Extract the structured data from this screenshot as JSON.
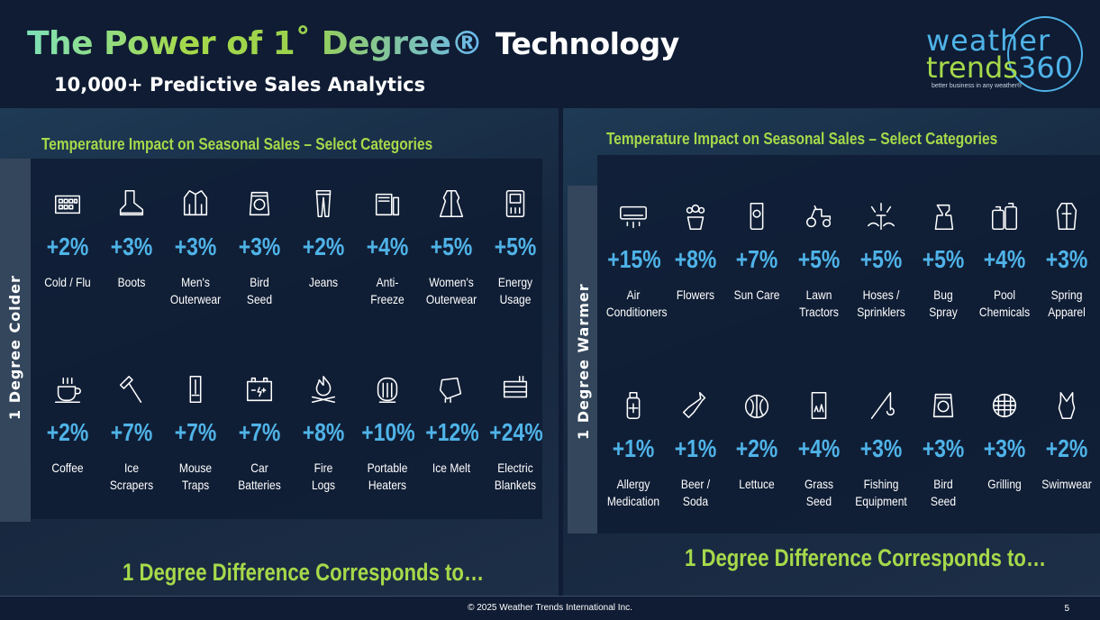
{
  "header": {
    "title_main": "The Power of 1˚ Degree®",
    "title_tech": "Technology",
    "subtitle": "10,000+ Predictive Sales Analytics"
  },
  "logo": {
    "line1": "weather",
    "line2": "trends",
    "line2b": "360",
    "tagline": "better business in any weather®"
  },
  "left_panel": {
    "title": "Temperature Impact on Seasonal Sales – Select Categories",
    "side_label": "1 Degree Colder",
    "bottom_text": "1 Degree Difference Corresponds to…",
    "row1": [
      {
        "icon": "tissue-box-icon",
        "pct": "+2%",
        "label": "Cold / Flu"
      },
      {
        "icon": "boot-icon",
        "pct": "+3%",
        "label": "Boots"
      },
      {
        "icon": "jacket-icon",
        "pct": "+3%",
        "label": "Men's\nOuterwear"
      },
      {
        "icon": "seed-bag-icon",
        "pct": "+3%",
        "label": "Bird\nSeed"
      },
      {
        "icon": "jeans-icon",
        "pct": "+2%",
        "label": "Jeans"
      },
      {
        "icon": "antifreeze-icon",
        "pct": "+4%",
        "label": "Anti-\nFreeze"
      },
      {
        "icon": "coat-icon",
        "pct": "+5%",
        "label": "Women's\nOuterwear"
      },
      {
        "icon": "thermostat-icon",
        "pct": "+5%",
        "label": "Energy\nUsage"
      }
    ],
    "row2": [
      {
        "icon": "coffee-cup-icon",
        "pct": "+2%",
        "label": "Coffee"
      },
      {
        "icon": "ice-scraper-icon",
        "pct": "+7%",
        "label": "Ice\nScrapers"
      },
      {
        "icon": "mouse-trap-icon",
        "pct": "+7%",
        "label": "Mouse\nTraps"
      },
      {
        "icon": "car-battery-icon",
        "pct": "+7%",
        "label": "Car\nBatteries"
      },
      {
        "icon": "fire-logs-icon",
        "pct": "+8%",
        "label": "Fire\nLogs"
      },
      {
        "icon": "heater-icon",
        "pct": "+10%",
        "label": "Portable\nHeaters"
      },
      {
        "icon": "ice-melt-icon",
        "pct": "+12%",
        "label": "Ice Melt"
      },
      {
        "icon": "blanket-icon",
        "pct": "+24%",
        "label": "Electric\nBlankets"
      }
    ]
  },
  "right_panel": {
    "title": "Temperature Impact on Seasonal Sales – Select Categories",
    "side_label": "1 Degree Warmer",
    "bottom_text": "1 Degree Difference Corresponds to…",
    "row1": [
      {
        "icon": "air-conditioner-icon",
        "pct": "+15%",
        "label": "Air\nConditioners"
      },
      {
        "icon": "flower-pot-icon",
        "pct": "+8%",
        "label": "Flowers"
      },
      {
        "icon": "sunscreen-icon",
        "pct": "+7%",
        "label": "Sun Care"
      },
      {
        "icon": "lawn-tractor-icon",
        "pct": "+5%",
        "label": "Lawn\nTractors"
      },
      {
        "icon": "sprinkler-icon",
        "pct": "+5%",
        "label": "Hoses /\nSprinklers"
      },
      {
        "icon": "spray-bottle-icon",
        "pct": "+5%",
        "label": "Bug\nSpray"
      },
      {
        "icon": "chemical-bottles-icon",
        "pct": "+4%",
        "label": "Pool\nChemicals"
      },
      {
        "icon": "raincoat-icon",
        "pct": "+3%",
        "label": "Spring\nApparel"
      }
    ],
    "row2": [
      {
        "icon": "allergy-bottle-icon",
        "pct": "+1%",
        "label": "Allergy\nMedication"
      },
      {
        "icon": "beer-bottle-icon",
        "pct": "+1%",
        "label": "Beer /\nSoda"
      },
      {
        "icon": "lettuce-icon",
        "pct": "+2%",
        "label": "Lettuce"
      },
      {
        "icon": "grass-seed-icon",
        "pct": "+4%",
        "label": "Grass\nSeed"
      },
      {
        "icon": "fishing-rod-icon",
        "pct": "+3%",
        "label": "Fishing\nEquipment"
      },
      {
        "icon": "seed-bag-icon",
        "pct": "+3%",
        "label": "Bird\nSeed"
      },
      {
        "icon": "grill-icon",
        "pct": "+3%",
        "label": "Grilling"
      },
      {
        "icon": "swimsuit-icon",
        "pct": "+2%",
        "label": "Swimwear"
      }
    ]
  },
  "footer": {
    "copyright": "© 2025 Weather Trends International Inc.",
    "page_number": "5"
  },
  "colors": {
    "background": "#0f1c33",
    "accent_green": "#a6d94a",
    "accent_blue": "#4fb3e8"
  }
}
